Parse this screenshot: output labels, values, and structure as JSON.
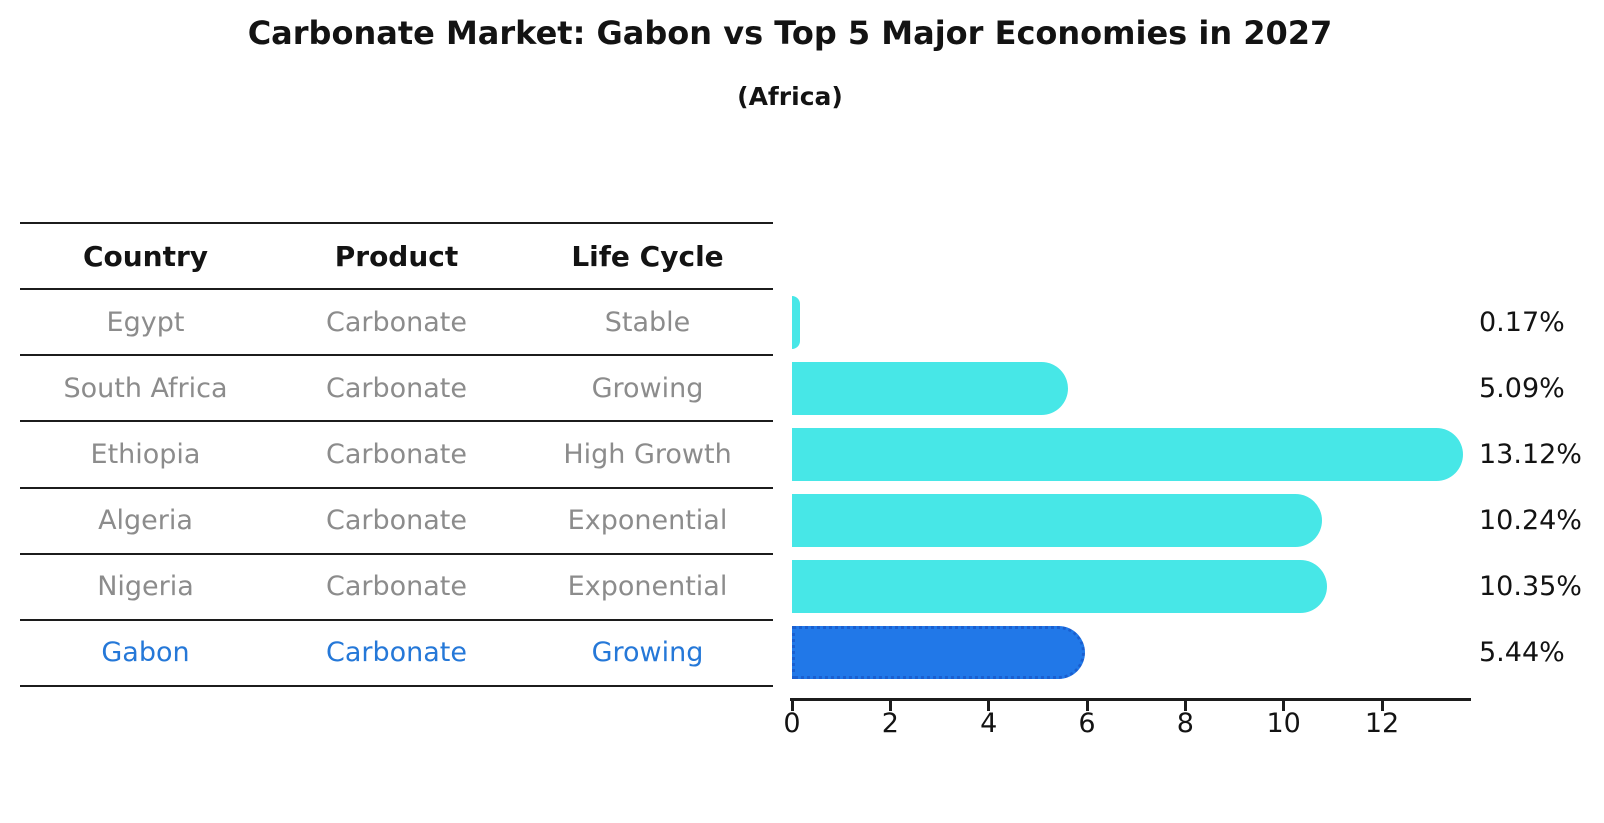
{
  "title": "Carbonate Market: Gabon vs Top 5 Major Economies in 2027",
  "subtitle": "(Africa)",
  "table": {
    "headers": [
      "Country",
      "Product",
      "Life Cycle"
    ],
    "rows": [
      {
        "country": "Egypt",
        "product": "Carbonate",
        "life_cycle": "Stable",
        "highlight": false
      },
      {
        "country": "South Africa",
        "product": "Carbonate",
        "life_cycle": "Growing",
        "highlight": false
      },
      {
        "country": "Ethiopia",
        "product": "Carbonate",
        "life_cycle": "High Growth",
        "highlight": false
      },
      {
        "country": "Algeria",
        "product": "Carbonate",
        "life_cycle": "Exponential",
        "highlight": false
      },
      {
        "country": "Nigeria",
        "product": "Carbonate",
        "life_cycle": "Exponential",
        "highlight": false
      },
      {
        "country": "Gabon",
        "product": "Carbonate",
        "life_cycle": "Growing",
        "highlight": true
      }
    ]
  },
  "chart_data": {
    "type": "bar",
    "orientation": "horizontal",
    "title": "Carbonate Market: Gabon vs Top 5 Major Economies in 2027",
    "subtitle": "(Africa)",
    "categories": [
      "Egypt",
      "South Africa",
      "Ethiopia",
      "Algeria",
      "Nigeria",
      "Gabon"
    ],
    "values": [
      0.17,
      5.09,
      13.12,
      10.24,
      10.35,
      5.44
    ],
    "value_labels": [
      "0.17%",
      "5.09%",
      "13.12%",
      "10.24%",
      "10.35%",
      "5.44%"
    ],
    "highlight_index": 5,
    "x_ticks": [
      0,
      2,
      4,
      6,
      8,
      10,
      12
    ],
    "xlim": [
      0,
      13.8
    ],
    "xlabel": "",
    "ylabel": "",
    "grid": false,
    "legend": false
  },
  "colors": {
    "bar": "#47e7e7",
    "highlight_bar": "#2178e8",
    "highlight_border": "#1a5fd0",
    "highlight_text": "#2578d8",
    "text": "#131313",
    "muted_text": "#8c8c8c",
    "line": "#1c1c1c",
    "background": "#ffffff"
  }
}
